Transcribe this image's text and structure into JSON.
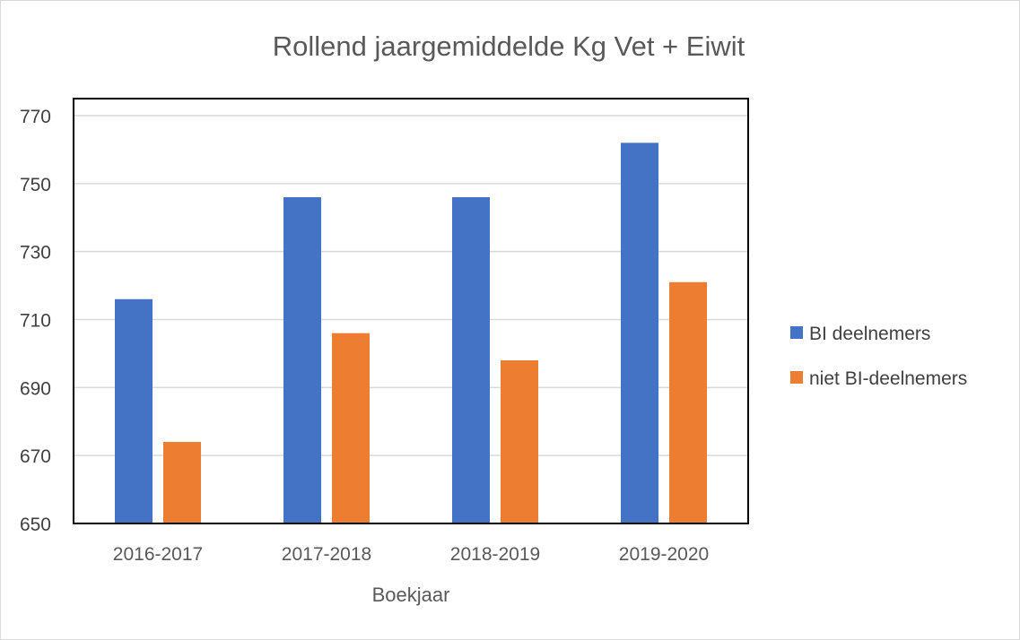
{
  "chart_data": {
    "type": "bar",
    "title": "Rollend jaargemiddelde Kg Vet + Eiwit",
    "xlabel": "Boekjaar",
    "ylabel": "",
    "categories": [
      "2016-2017",
      "2017-2018",
      "2018-2019",
      "2019-2020"
    ],
    "series": [
      {
        "name": "BI deelnemers",
        "values": [
          716,
          746,
          746,
          762
        ],
        "color": "#4472C4"
      },
      {
        "name": "niet BI-deelnemers",
        "values": [
          674,
          706,
          698,
          721
        ],
        "color": "#ED7D31"
      }
    ],
    "ylim": [
      650,
      770
    ],
    "yticks": [
      650,
      670,
      690,
      710,
      730,
      750,
      770
    ],
    "grid": true,
    "legend": "right"
  }
}
